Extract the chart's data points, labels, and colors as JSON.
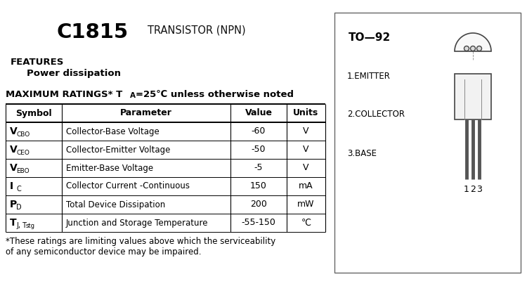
{
  "title_part": "C1815",
  "title_sub": "TRANSISTOR (NPN)",
  "features_header": "FEATURES",
  "features_item": "Power dissipation",
  "table_headers": [
    "Symbol",
    "Parameter",
    "Value",
    "Units"
  ],
  "symbols": [
    [
      "V",
      "CBO"
    ],
    [
      "V",
      "CEO"
    ],
    [
      "V",
      "EBO"
    ],
    [
      "I",
      "C"
    ],
    [
      "P",
      "D"
    ],
    [
      "T",
      "J, T",
      "stg"
    ]
  ],
  "params": [
    "Collector-Base Voltage",
    "Collector-Emitter Voltage",
    "Emitter-Base Voltage",
    "Collector Current -Continuous",
    "Total Device Dissipation",
    "Junction and Storage Temperature"
  ],
  "values": [
    "-60",
    "-50",
    "-5",
    "150",
    "200",
    "-55-150"
  ],
  "units": [
    "V",
    "V",
    "V",
    "mA",
    "mW",
    "℃"
  ],
  "footnote_line1": "*These ratings are limiting values above which the serviceability",
  "footnote_line2": "of any semiconductor device may be impaired.",
  "package_label": "TO—92",
  "pin_labels": [
    "1.EMITTER",
    "2.COLLECTOR",
    "3.BASE"
  ],
  "bg_color": "#ffffff",
  "line_color": "#000000"
}
